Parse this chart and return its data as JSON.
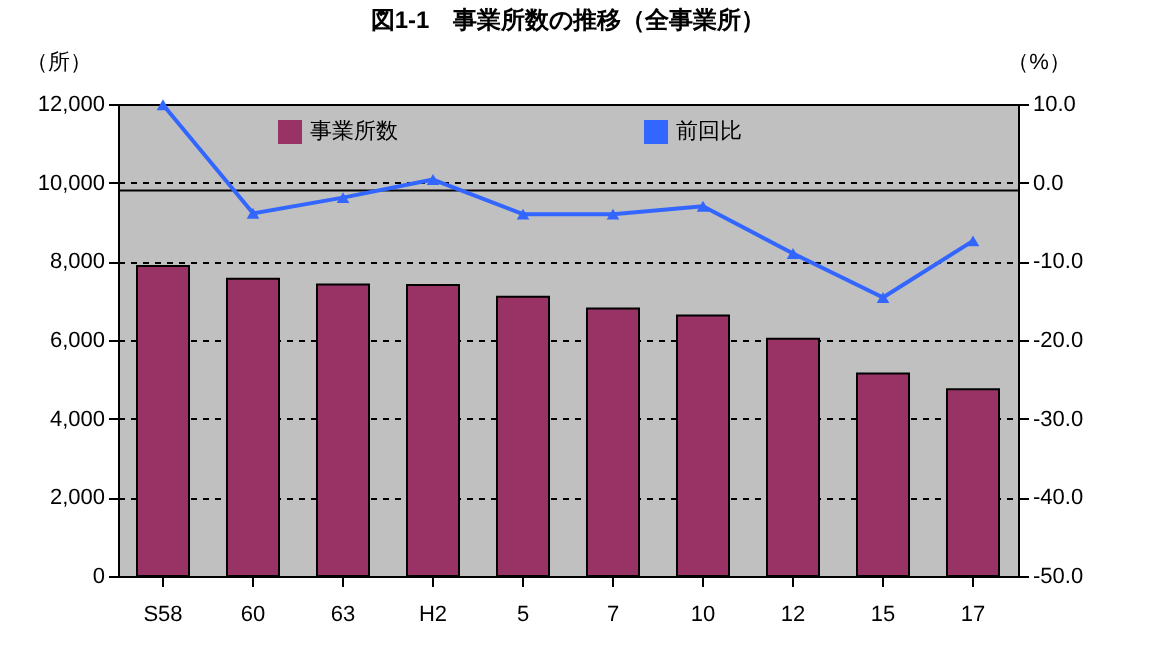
{
  "chart_data": {
    "type": "bar",
    "title": "図1-1　事業所数の推移（全事業所）",
    "ylabel": "（所）",
    "y2label": "（%）",
    "categories": [
      "S58",
      "60",
      "63",
      "H2",
      "5",
      "7",
      "10",
      "12",
      "15",
      "17"
    ],
    "series": [
      {
        "name": "事業所数",
        "color": "#993366",
        "values": [
          7880,
          7560,
          7410,
          7400,
          7100,
          6800,
          6620,
          6030,
          5150,
          4750
        ]
      },
      {
        "name": "前回比",
        "type": "line",
        "axis": "y2",
        "color": "#3366ff",
        "marker": "triangle",
        "values": [
          9.9,
          -3.9,
          -1.9,
          0.4,
          -4.0,
          -4.0,
          -3.0,
          -9.0,
          -14.6,
          -7.4
        ]
      }
    ],
    "ylim": [
      0,
      12000
    ],
    "yticks": [
      0,
      {
        "value": 2000,
        "label": "2,000"
      },
      {
        "value": 4000,
        "label": "4,000"
      },
      {
        "value": 6000,
        "label": "6,000"
      },
      {
        "value": 8000,
        "label": "8,000"
      },
      {
        "value": 10000,
        "label": "10,000"
      },
      {
        "value": 12000,
        "label": "12,000"
      }
    ],
    "y2lim": [
      -50,
      10
    ],
    "y2ticks": [
      {
        "value": -50,
        "label": "-50.0"
      },
      {
        "value": -40,
        "label": "-40.0"
      },
      {
        "value": -30,
        "label": "-30.0"
      },
      {
        "value": -20,
        "label": "-20.0"
      },
      {
        "value": -10,
        "label": "-10.0"
      },
      {
        "value": 0,
        "label": "0.0"
      },
      {
        "value": 10,
        "label": "10.0"
      }
    ],
    "ref_lines": [
      {
        "axis": "y",
        "value": 9800,
        "color": "#000000",
        "line_style": "solid"
      }
    ],
    "grid": "y",
    "legend": "top"
  }
}
